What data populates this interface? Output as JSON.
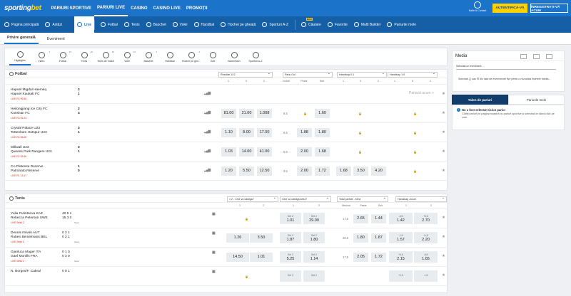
{
  "header": {
    "logo_a": "sporting",
    "logo_b": "bet",
    "nav": [
      "PARIURI SPORTIVE",
      "PARIURI LIVE",
      "CASINO",
      "CASINO LIVE",
      "PROMOȚII"
    ],
    "user": "Natie & Contact",
    "auth": "AUTENTIFICĂ-VĂ",
    "register": "ÎNREGISTRAȚI-VĂ ACUM"
  },
  "subnav": [
    "Pagina principală",
    "Astăzi",
    "Live",
    "Fotbal",
    "Tenis",
    "Baschet",
    "Volei",
    "Handbal",
    "Hochei pe gheață",
    "Sporturi A-Z",
    "Căutare",
    "Favorite",
    "Multi Builder",
    "Pariurile mele"
  ],
  "subnav_new": "NOU",
  "tabs": [
    "Privire generală",
    "Eveniment"
  ],
  "sports": [
    {
      "l": "Highlights",
      "c": ""
    },
    {
      "l": "Video",
      "c": "4"
    },
    {
      "l": "Fotbal",
      "c": "15"
    },
    {
      "l": "Tenis",
      "c": "20"
    },
    {
      "l": "Tenis de masă",
      "c": "15"
    },
    {
      "l": "Volei",
      "c": "10"
    },
    {
      "l": "Baschet",
      "c": "4"
    },
    {
      "l": "Handbal",
      "c": ""
    },
    {
      "l": "Hochei pe ghe...",
      "c": "4"
    },
    {
      "l": "Golf",
      "c": ""
    },
    {
      "l": "Badminton",
      "c": ""
    },
    {
      "l": "Sporturi A-Z",
      "c": ""
    }
  ],
  "football": {
    "title": "Fotbal",
    "sel": [
      "Rezultat 1X2",
      "Pariu Gol",
      "Handicap 0:1",
      "Handicap 1:0"
    ],
    "cols": [
      "1",
      "X",
      "2",
      "Goluri",
      "Peste",
      "Sub",
      "1",
      "X",
      "2",
      "1",
      "X",
      "2"
    ],
    "suspended": "Pariază acum >",
    "matches": [
      {
        "h": "Hapoel Migdal Haemeq",
        "a": "Hapoel Kaukab FC",
        "sh": "2",
        "sa": "1",
        "live": "LIVE",
        "time": "R2 99:36"
      },
      {
        "h": "Heilongjiang Ice City FC",
        "a": "Kunshan FC",
        "sh": "2",
        "sa": "4",
        "live": "LIVE",
        "time": "R2 81:24",
        "o": [
          "81.00",
          "21.00",
          "1.008"
        ],
        "g": "6,5",
        "p": "",
        "s": "1.60"
      },
      {
        "h": "Crystal Palace",
        "ha": "U23",
        "a": "Tottenham Hotspur",
        "aa": "U23",
        "sh": "3",
        "sa": "1",
        "live": "LIVE",
        "time": "R2 56:08",
        "o": [
          "1.10",
          "8.00",
          "17.00"
        ],
        "g": "5,5",
        "p": "1.88",
        "s": "1.80"
      },
      {
        "h": "Millwall",
        "ha": "U23",
        "a": "Queens Park Rangers",
        "aa": "U23",
        "sh": "3",
        "sa": "1",
        "live": "LIVE",
        "time": "R2 53:36",
        "o": [
          "1.03",
          "14.00",
          "41.00"
        ],
        "g": "5,5",
        "p": "2.00",
        "s": "1.68"
      },
      {
        "h": "CA Platense",
        "ha": "Rezerve",
        "a": "Patronato",
        "aa": "Rezerve",
        "sh": "1",
        "sa": "0",
        "live": "LIVE",
        "time": "R1 13:17",
        "o": [
          "1.20",
          "5.50",
          "12.50"
        ],
        "g": "3,5",
        "p": "2.00",
        "s": "1.72",
        "h1": [
          "1.68",
          "3.50",
          "4.20"
        ]
      }
    ]
  },
  "tennis": {
    "title": "Tenis",
    "sel": [
      "1 2 - Cine va câștiga?",
      "Cine va câștiga setul?",
      "Total partide - Meci",
      "Handicap Jocuri"
    ],
    "cols": [
      "1",
      "2",
      "1",
      "2",
      "Meciuri",
      "Peste",
      "Sub",
      "1",
      "2"
    ],
    "matches": [
      {
        "h": "Yulia Putintseva",
        "ha": "KAZ",
        "a": "Rebecca Peterson",
        "aa": "SWE",
        "sh": "40 5 1",
        "sa": "15 3 0",
        "live": "LIVE",
        "time": "Setul 2",
        "seti": "Setul",
        "set1": "Set 2",
        "o1": "1.01",
        "set2": "Set 2",
        "o2": "29.00",
        "g": "17,5",
        "p": "2.65",
        "s": "1.44",
        "hc1": "-6,5",
        "hv1": "1.42",
        "hc2": "+6,5",
        "hv2": "2.70"
      },
      {
        "h": "Dennis Novak",
        "ha": "AUT",
        "a": "Ruben Bemelmans",
        "aa": "BEL",
        "sh": "0 2 1",
        "sa": "0 2 1",
        "live": "LIVE",
        "time": "Setul 3",
        "seti": "Setul",
        "m1": "1.26",
        "m2": "3.50",
        "set1": "Set 2",
        "o1": "1.87",
        "set2": "Set 2",
        "o2": "1.80",
        "g": "26,5",
        "p": "1.80",
        "s": "1.87",
        "hc1": "-1,5",
        "hv1": "1.57",
        "hc2": "+1,5",
        "hv2": "2.20"
      },
      {
        "h": "Gianluca Mager",
        "ha": "ITA",
        "a": "Gael Monfils",
        "aa": "FRA",
        "sh": "0 1 0",
        "sa": "0 3 0",
        "live": "LIVE",
        "time": "Setul 2",
        "seti": "Setul",
        "m1": "14.50",
        "m2": "1.01",
        "set1": "Set 2",
        "o1": "5.25",
        "set2": "Set 2",
        "o2": "1.14",
        "g": "17,5",
        "p": "2.05",
        "s": "1.72",
        "hc1": "+6,5",
        "hv1": "2.15",
        "hc2": "-6,5",
        "hv2": "1.65"
      },
      {
        "h": "N. Borges/F. Cabral",
        "sh": "0 0 1",
        "set1": "Set 2",
        "set2": "Set 2",
        "hc1": "+1,5",
        "hc2": "-1,5"
      }
    ]
  },
  "side": {
    "media": "Media",
    "dropdown": "Selectați un eveniment ...",
    "text": "Selectați { } sau ☰ din lista de evenimente live pentru a vizualiza fișierele media...",
    "tabs": [
      "Talon de pariuri",
      "Pariurile mele"
    ],
    "info_title": "Nu a fost selectat niciun pariu!",
    "info_text": "Clătiți pariuri pe pagina noastră cu pariuri sportive și selectați-le dând click pe cote."
  },
  "colors": {
    "brand": "#1b74c9",
    "dark": "#123d6a",
    "accent": "#ffd100",
    "live": "#dd2211"
  }
}
